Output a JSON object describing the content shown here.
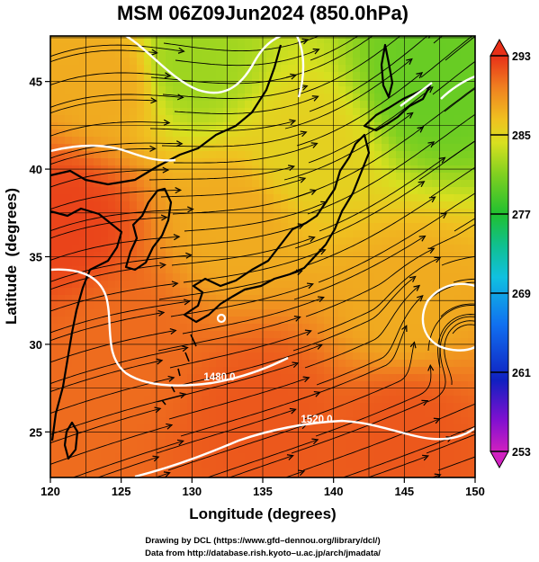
{
  "title": "MSM 06Z09Jun2024 (850.0hPa)",
  "chart_data": {
    "type": "heatmap",
    "title": "MSM 06Z09Jun2024 (850.0hPa)",
    "xlabel": "Longitude (degrees)",
    "ylabel": "Latitude  (degrees)",
    "xlim": [
      120,
      150
    ],
    "ylim": [
      22.4,
      47.6
    ],
    "x_ticks": [
      "120",
      "125",
      "130",
      "135",
      "140",
      "145",
      "150"
    ],
    "y_ticks": [
      "25",
      "30",
      "35",
      "40",
      "45"
    ],
    "grid": true,
    "colorbar": {
      "min": 253,
      "max": 293,
      "ticks": [
        "293",
        "285",
        "277",
        "269",
        "261",
        "253"
      ],
      "position": "right"
    },
    "contour_labels": [
      "1480.0",
      "1520.0"
    ],
    "overlay": "streamlines",
    "field_samples": [
      {
        "lon": 121,
        "lat": 37,
        "value": 292
      },
      {
        "lon": 125,
        "lat": 30,
        "value": 290
      },
      {
        "lon": 135,
        "lat": 26,
        "value": 291
      },
      {
        "lon": 145,
        "lat": 25,
        "value": 291
      },
      {
        "lon": 133,
        "lat": 37,
        "value": 287
      },
      {
        "lon": 138,
        "lat": 41,
        "value": 285
      },
      {
        "lon": 145,
        "lat": 32,
        "value": 287
      },
      {
        "lon": 130,
        "lat": 46,
        "value": 282
      },
      {
        "lon": 147,
        "lat": 45,
        "value": 280
      },
      {
        "lon": 124,
        "lat": 45,
        "value": 287
      }
    ]
  },
  "credits": {
    "line1": "Drawing by DCL (https://www.gfd–dennou.org/library/dcl/)",
    "line2": "Data from http://database.rish.kyoto–u.ac.jp/arch/jmadata/"
  },
  "colors": {
    "warm": "#e8341a",
    "neutral": "#f0d020",
    "cool": "#80d020",
    "contour": "#ffffff"
  }
}
